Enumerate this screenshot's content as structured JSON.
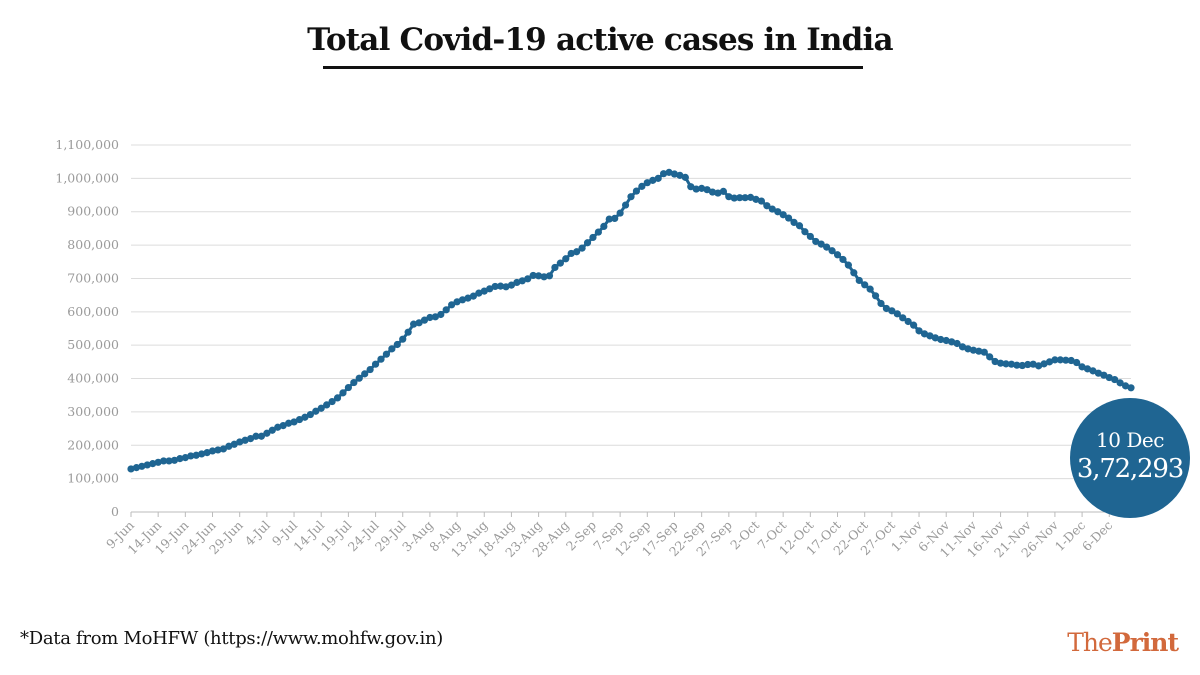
{
  "title": "Total Covid-19 active cases in India",
  "source": "*Data from MoHFW (https://www.mohfw.gov.in)",
  "logo": {
    "the": "The",
    "print": "Print"
  },
  "callout": {
    "date": "10 Dec",
    "value": "3,72,293"
  },
  "colors": {
    "line": "#1f6592",
    "callout": "#1f6592",
    "grid": "#dcdcdc",
    "tick_text": "#9a9a9a",
    "logo": "#d2693c"
  },
  "chart_data": {
    "type": "line",
    "title": "Total Covid-19 active cases in India",
    "xlabel": "",
    "ylabel": "",
    "ylim": [
      0,
      1100000
    ],
    "grid": true,
    "y_ticks": [
      0,
      100000,
      200000,
      300000,
      400000,
      500000,
      600000,
      700000,
      800000,
      900000,
      1000000,
      1100000
    ],
    "y_tick_labels": [
      "0",
      "100,000",
      "200,000",
      "300,000",
      "400,000",
      "500,000",
      "600,000",
      "700,000",
      "800,000",
      "900,000",
      "1,000,000",
      "1,100,000"
    ],
    "x_tick_labels": [
      "9-Jun",
      "14-Jun",
      "19-Jun",
      "24-Jun",
      "29-Jun",
      "4-Jul",
      "9-Jul",
      "14-Jul",
      "19-Jul",
      "24-Jul",
      "29-Jul",
      "3-Aug",
      "8-Aug",
      "13-Aug",
      "18-Aug",
      "23-Aug",
      "28-Aug",
      "2-Sep",
      "7-Sep",
      "12-Sep",
      "17-Sep",
      "22-Sep",
      "27-Sep",
      "2-Oct",
      "7-Oct",
      "12-Oct",
      "17-Oct",
      "22-Oct",
      "27-Oct",
      "1-Nov",
      "6-Nov",
      "11-Nov",
      "16-Nov",
      "21-Nov",
      "26-Nov",
      "1-Dec",
      "6-Dec"
    ],
    "x_tick_every": 5,
    "x_start": "9-Jun",
    "x_end": "10-Dec",
    "series": [
      {
        "values": [
          129000,
          133000,
          137000,
          141000,
          145000,
          149000,
          153000,
          153000,
          155000,
          160000,
          163000,
          168000,
          170000,
          174000,
          178000,
          183000,
          186000,
          189000,
          197000,
          203000,
          210000,
          215000,
          220000,
          227000,
          227000,
          236000,
          245000,
          254000,
          259000,
          266000,
          270000,
          277000,
          284000,
          292000,
          302000,
          311000,
          321000,
          331000,
          342000,
          357000,
          373000,
          388000,
          401000,
          414000,
          427000,
          443000,
          458000,
          473000,
          489000,
          502000,
          518000,
          539000,
          563000,
          567000,
          575000,
          583000,
          585000,
          592000,
          606000,
          621000,
          630000,
          636000,
          641000,
          647000,
          656000,
          662000,
          669000,
          676000,
          677000,
          675000,
          680000,
          688000,
          693000,
          699000,
          709000,
          708000,
          705000,
          708000,
          733000,
          746000,
          759000,
          775000,
          780000,
          791000,
          807000,
          823000,
          839000,
          856000,
          878000,
          880000,
          896000,
          920000,
          945000,
          962000,
          976000,
          987000,
          994000,
          1000000,
          1014000,
          1018000,
          1013000,
          1009000,
          1003000,
          975000,
          968000,
          970000,
          966000,
          959000,
          956000,
          961000,
          945000,
          941000,
          942000,
          942000,
          943000,
          937000,
          932000,
          918000,
          908000,
          900000,
          891000,
          881000,
          868000,
          858000,
          840000,
          826000,
          811000,
          803000,
          794000,
          783000,
          771000,
          757000,
          740000,
          717000,
          694000,
          681000,
          668000,
          648000,
          625000,
          610000,
          603000,
          594000,
          582000,
          571000,
          560000,
          543000,
          534000,
          528000,
          522000,
          517000,
          514000,
          510000,
          505000,
          495000,
          489000,
          485000,
          482000,
          479000,
          465000,
          451000,
          446000,
          444000,
          443000,
          440000,
          439000,
          442000,
          443000,
          438000,
          444000,
          450000,
          456000,
          456000,
          455000,
          454000,
          448000,
          435000,
          429000,
          423000,
          416000,
          410000,
          403000,
          397000,
          387000,
          378000,
          372293
        ]
      }
    ]
  }
}
